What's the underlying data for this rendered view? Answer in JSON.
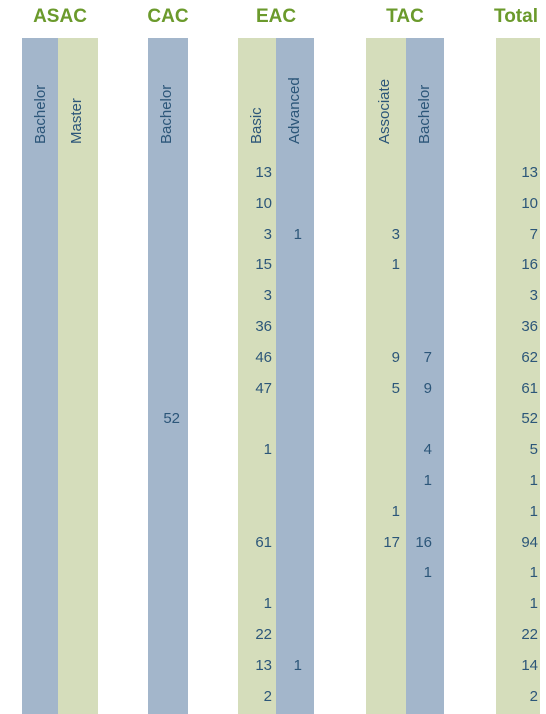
{
  "table": {
    "groups": [
      {
        "title": "ASAC",
        "columns": [
          "Bachelor",
          "Master"
        ]
      },
      {
        "title": "CAC",
        "columns": [
          "Bachelor"
        ]
      },
      {
        "title": "EAC",
        "columns": [
          "Basic",
          "Advanced"
        ]
      },
      {
        "title": "TAC",
        "columns": [
          "Associate",
          "Bachelor"
        ]
      },
      {
        "title": "Total",
        "columns": [
          null
        ]
      }
    ],
    "rows": [
      [
        null,
        null,
        null,
        13,
        null,
        null,
        null,
        13
      ],
      [
        null,
        null,
        null,
        10,
        null,
        null,
        null,
        10
      ],
      [
        null,
        null,
        null,
        3,
        1,
        3,
        null,
        7
      ],
      [
        null,
        null,
        null,
        15,
        null,
        1,
        null,
        16
      ],
      [
        null,
        null,
        null,
        3,
        null,
        null,
        null,
        3
      ],
      [
        null,
        null,
        null,
        36,
        null,
        null,
        null,
        36
      ],
      [
        null,
        null,
        null,
        46,
        null,
        9,
        7,
        62
      ],
      [
        null,
        null,
        null,
        47,
        null,
        5,
        9,
        61
      ],
      [
        null,
        null,
        52,
        null,
        null,
        null,
        null,
        52
      ],
      [
        null,
        null,
        null,
        1,
        null,
        null,
        4,
        5
      ],
      [
        null,
        null,
        null,
        null,
        null,
        null,
        1,
        1
      ],
      [
        null,
        null,
        null,
        null,
        null,
        1,
        null,
        1
      ],
      [
        null,
        null,
        null,
        61,
        null,
        17,
        16,
        94
      ],
      [
        null,
        null,
        null,
        null,
        null,
        null,
        1,
        1
      ],
      [
        null,
        null,
        null,
        1,
        null,
        null,
        null,
        1
      ],
      [
        null,
        null,
        null,
        22,
        null,
        null,
        null,
        22
      ],
      [
        null,
        null,
        null,
        13,
        1,
        null,
        null,
        14
      ],
      [
        null,
        null,
        null,
        2,
        null,
        null,
        null,
        2
      ]
    ]
  }
}
